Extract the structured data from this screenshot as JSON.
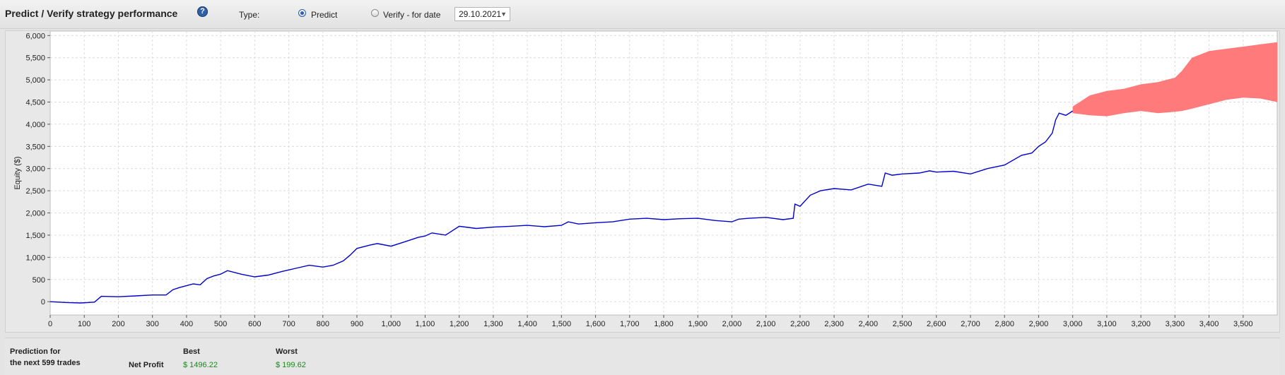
{
  "header": {
    "title": "Predict / Verify strategy performance",
    "help_icon": "question-circle-icon",
    "type_label": "Type:",
    "options": [
      {
        "label": "Predict",
        "checked": true
      },
      {
        "label": "Verify - for date",
        "checked": false
      }
    ],
    "date_value": "29.10.2021",
    "accent_color": "#2f5fa8"
  },
  "chart_data": {
    "type": "line",
    "ylabel": "Equity ($)",
    "xlim": [
      0,
      3600
    ],
    "ylim": [
      -300,
      6100
    ],
    "x_ticks": [
      "0",
      "100",
      "200",
      "300",
      "400",
      "500",
      "600",
      "700",
      "800",
      "900",
      "1,000",
      "1,100",
      "1,200",
      "1,300",
      "1,400",
      "1,500",
      "1,600",
      "1,700",
      "1,800",
      "1,900",
      "2,000",
      "2,100",
      "2,200",
      "2,300",
      "2,400",
      "2,500",
      "2,600",
      "2,700",
      "2,800",
      "2,900",
      "3,000",
      "3,100",
      "3,200",
      "3,300",
      "3,400",
      "3,500"
    ],
    "y_ticks": [
      "0",
      "500",
      "1,000",
      "1,500",
      "2,000",
      "2,500",
      "3,000",
      "3,500",
      "4,000",
      "4,500",
      "5,000",
      "5,500",
      "6,000"
    ],
    "grid": true,
    "line_color": "#0000cc",
    "band_color": "#ff7a7a",
    "series": [
      {
        "x": [
          0,
          50,
          90,
          130,
          150,
          200,
          250,
          300,
          340,
          360,
          380,
          420,
          440,
          460,
          480,
          500,
          520,
          560,
          600,
          640,
          680,
          720,
          760,
          800,
          830,
          860,
          880,
          900,
          940,
          960,
          1000,
          1040,
          1080,
          1100,
          1120,
          1160,
          1200,
          1250,
          1300,
          1350,
          1400,
          1450,
          1500,
          1520,
          1550,
          1600,
          1650,
          1700,
          1750,
          1800,
          1850,
          1900,
          1950,
          2000,
          2020,
          2050,
          2100,
          2150,
          2180,
          2185,
          2200,
          2230,
          2260,
          2300,
          2350,
          2400,
          2440,
          2450,
          2470,
          2500,
          2550,
          2580,
          2600,
          2650,
          2700,
          2750,
          2800,
          2850,
          2880,
          2900,
          2920,
          2930,
          2940,
          2950,
          2960,
          2980,
          3000
        ],
        "y": [
          0,
          -20,
          -30,
          -10,
          120,
          110,
          130,
          150,
          150,
          270,
          320,
          400,
          380,
          520,
          580,
          620,
          700,
          620,
          560,
          600,
          680,
          750,
          820,
          780,
          820,
          920,
          1050,
          1200,
          1280,
          1310,
          1250,
          1350,
          1450,
          1480,
          1550,
          1500,
          1700,
          1650,
          1680,
          1700,
          1720,
          1690,
          1720,
          1800,
          1750,
          1780,
          1800,
          1860,
          1880,
          1850,
          1870,
          1880,
          1830,
          1800,
          1860,
          1880,
          1900,
          1850,
          1880,
          2200,
          2150,
          2400,
          2500,
          2550,
          2520,
          2650,
          2600,
          2900,
          2850,
          2880,
          2900,
          2950,
          2920,
          2940,
          2880,
          3000,
          3080,
          3300,
          3350,
          3500,
          3600,
          3700,
          3800,
          4100,
          4250,
          4200,
          4300
        ]
      }
    ],
    "prediction_band": {
      "x": [
        3000,
        3050,
        3100,
        3150,
        3200,
        3250,
        3300,
        3320,
        3350,
        3400,
        3450,
        3500,
        3550,
        3600
      ],
      "upper": [
        4400,
        4650,
        4750,
        4800,
        4900,
        4950,
        5050,
        5200,
        5500,
        5650,
        5700,
        5750,
        5800,
        5850
      ],
      "lower": [
        4250,
        4200,
        4180,
        4250,
        4300,
        4250,
        4280,
        4300,
        4350,
        4450,
        4550,
        4600,
        4580,
        4500
      ]
    }
  },
  "footer": {
    "prediction_line1": "Prediction for",
    "prediction_line2": "the next 599 trades",
    "best_label": "Best",
    "worst_label": "Worst",
    "row_label": "Net Profit",
    "best_value": "$ 1496.22",
    "worst_value": "$ 199.62",
    "value_color": "#1a8a1a"
  }
}
